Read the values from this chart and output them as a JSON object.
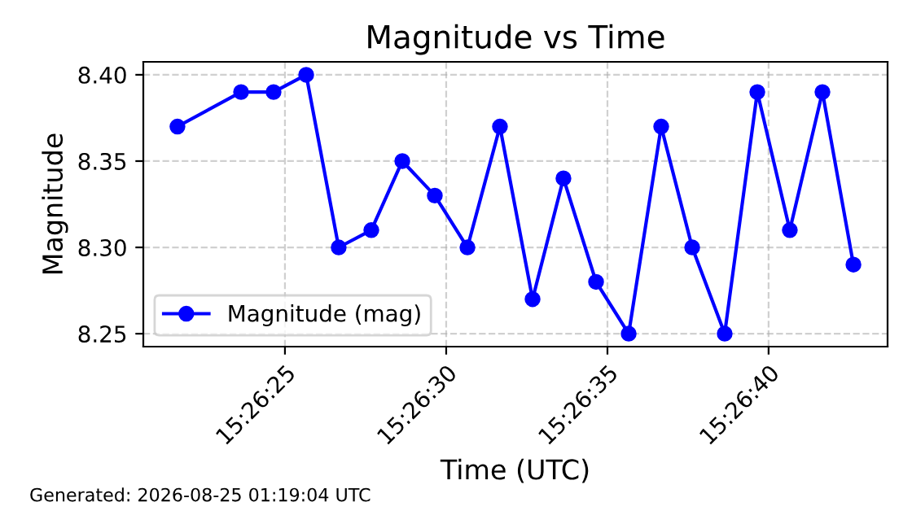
{
  "chart_data": {
    "type": "line",
    "title": "Magnitude vs Time",
    "xlabel": "Time (UTC)",
    "ylabel": "Magnitude",
    "x": [
      15.439352,
      15.4399,
      15.44018,
      15.440461,
      15.440741,
      15.441022,
      15.441289,
      15.441569,
      15.44185,
      15.44213,
      15.442411,
      15.442677,
      15.442958,
      15.443239,
      15.443519,
      15.443786,
      15.444066,
      15.444347,
      15.444627,
      15.444908,
      15.445175
    ],
    "series": [
      {
        "name": "Magnitude (mag)",
        "color": "#0000ff",
        "values": [
          8.37,
          8.39,
          8.39,
          8.4,
          8.3,
          8.31,
          8.35,
          8.33,
          8.3,
          8.37,
          8.27,
          8.34,
          8.28,
          8.25,
          8.37,
          8.3,
          8.25,
          8.39,
          8.31,
          8.39,
          8.29
        ]
      }
    ],
    "xlim": [
      15.439058,
      15.445469
    ],
    "xticks": [
      {
        "value": 15.440278,
        "label": "15:26:25"
      },
      {
        "value": 15.441667,
        "label": "15:26:30"
      },
      {
        "value": 15.443056,
        "label": "15:26:35"
      },
      {
        "value": 15.444444,
        "label": "15:26:40"
      }
    ],
    "ylim": [
      8.2425,
      8.4075
    ],
    "yticks": [
      8.25,
      {
        "value": 8.3,
        "label": "8.30"
      },
      8.35,
      {
        "value": 8.4,
        "label": "8.40"
      }
    ],
    "grid": true,
    "legend": "bottom left",
    "marker": "circle",
    "line_style": "solid",
    "annotations": [
      "Generated: 2026-08-25 01:19:04 UTC"
    ]
  }
}
